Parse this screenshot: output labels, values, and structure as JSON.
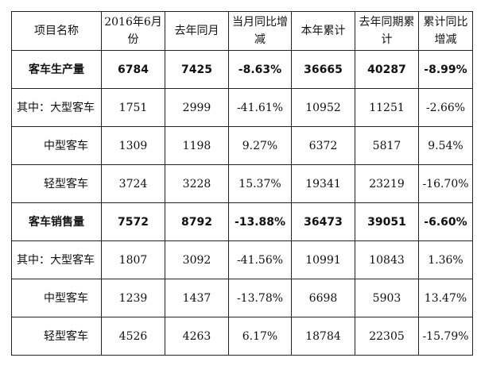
{
  "headers": [
    "项目名称",
    "2016年6月份",
    "去年同月",
    "当月同比增减",
    "本年累计",
    "去年同期累计",
    "累计同比增减"
  ],
  "rows": [
    {
      "name": "客车生产量",
      "values": [
        "6784",
        "7425",
        "-8.63%",
        "36665",
        "40287",
        "-8.99%"
      ],
      "bold": true
    },
    {
      "name": "其中：大型客车",
      "values": [
        "1751",
        "2999",
        "-41.61%",
        "10952",
        "11251",
        "-2.66%"
      ]
    },
    {
      "name": "中型客车",
      "values": [
        "1309",
        "1198",
        "9.27%",
        "6372",
        "5817",
        "9.54%"
      ]
    },
    {
      "name": "轻型客车",
      "values": [
        "3724",
        "3228",
        "15.37%",
        "19341",
        "23219",
        "-16.70%"
      ]
    },
    {
      "name": "客车销售量",
      "values": [
        "7572",
        "8792",
        "-13.88%",
        "36473",
        "39051",
        "-6.60%"
      ],
      "bold": true
    },
    {
      "name": "其中：大型客车",
      "values": [
        "1807",
        "3092",
        "-41.56%",
        "10991",
        "10843",
        "1.36%"
      ]
    },
    {
      "name": "中型客车",
      "values": [
        "1239",
        "1437",
        "-13.78%",
        "6698",
        "5903",
        "13.47%"
      ]
    },
    {
      "name": "轻型客车",
      "values": [
        "4526",
        "4263",
        "6.17%",
        "18784",
        "22305",
        "-15.79%"
      ]
    }
  ]
}
